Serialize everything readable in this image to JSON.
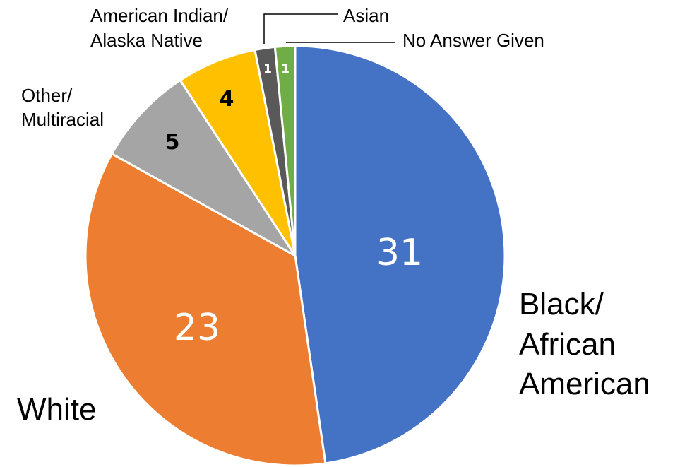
{
  "chart_data": {
    "type": "pie",
    "title": "",
    "slices": [
      {
        "label": "Black/ African American",
        "value": 31,
        "color": "#4472C4"
      },
      {
        "label": "White",
        "value": 23,
        "color": "#ED7D31"
      },
      {
        "label": "Other/ Multiracial",
        "value": 5,
        "color": "#A5A5A5"
      },
      {
        "label": "American Indian/ Alaska Native",
        "value": 4,
        "color": "#FFC000"
      },
      {
        "label": "Asian",
        "value": 1,
        "color": "#595959"
      },
      {
        "label": "No Answer Given",
        "value": 1,
        "color": "#70AD47"
      }
    ],
    "category_labels": {
      "black_line1": "Black/",
      "black_line2": "African",
      "black_line3": "American",
      "white": "White",
      "other_line1": "Other/",
      "other_line2": "Multiracial",
      "amind_line1": "American Indian/",
      "amind_line2": "Alaska Native",
      "asian": "Asian",
      "noanswer": "No Answer Given"
    },
    "value_labels": {
      "black": "31",
      "white": "23",
      "other": "5",
      "amind": "4",
      "asian": "1",
      "noanswer": "1"
    }
  }
}
